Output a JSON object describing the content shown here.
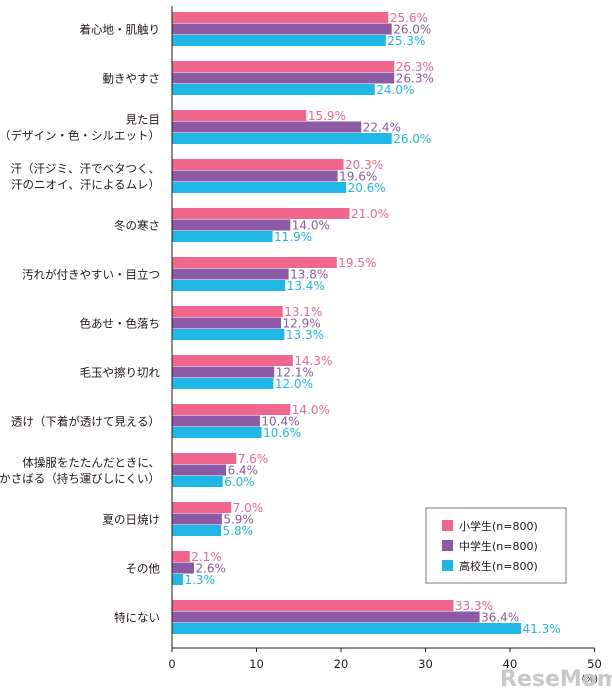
{
  "chart_data": {
    "type": "bar",
    "orientation": "horizontal",
    "categories": [
      [
        "着心地・肌触り"
      ],
      [
        "動きやすさ"
      ],
      [
        "見た目",
        "（デザイン・色・シルエット）"
      ],
      [
        "汗（汗ジミ、汗でベタつく、",
        "汗のニオイ、汗によるムレ）"
      ],
      [
        "冬の寒さ"
      ],
      [
        "汚れが付きやすい・目立つ"
      ],
      [
        "色あせ・色落ち"
      ],
      [
        "毛玉や擦り切れ"
      ],
      [
        "透け（下着が透けて見える）"
      ],
      [
        "体操服をたたんだときに、",
        "かさばる（持ち運びしにくい）"
      ],
      [
        "夏の日焼け"
      ],
      [
        "その他"
      ],
      [
        "特にない"
      ]
    ],
    "series": [
      {
        "name": "小学生(n=800)",
        "color": "#f0668d",
        "values": [
          25.6,
          26.3,
          15.9,
          20.3,
          21.0,
          19.5,
          13.1,
          14.3,
          14.0,
          7.6,
          7.0,
          2.1,
          33.3
        ]
      },
      {
        "name": "中学生(n=800)",
        "color": "#8d5aa5",
        "values": [
          26.0,
          26.3,
          22.4,
          19.6,
          14.0,
          13.8,
          12.9,
          12.1,
          10.4,
          6.4,
          5.9,
          2.6,
          36.4
        ]
      },
      {
        "name": "高校生(n=800)",
        "color": "#1fb8e6",
        "values": [
          25.3,
          24.0,
          26.0,
          20.6,
          11.9,
          13.4,
          13.3,
          12.0,
          10.6,
          6.0,
          5.8,
          1.3,
          41.3
        ]
      }
    ],
    "value_suffix": "%",
    "xlim": [
      0,
      50
    ],
    "xticks": [
      "0",
      "10",
      "20",
      "30",
      "40",
      "50"
    ],
    "xunit": "(%)",
    "legend_position": "bottom-right",
    "grid": false
  },
  "watermark": "ReseMom"
}
